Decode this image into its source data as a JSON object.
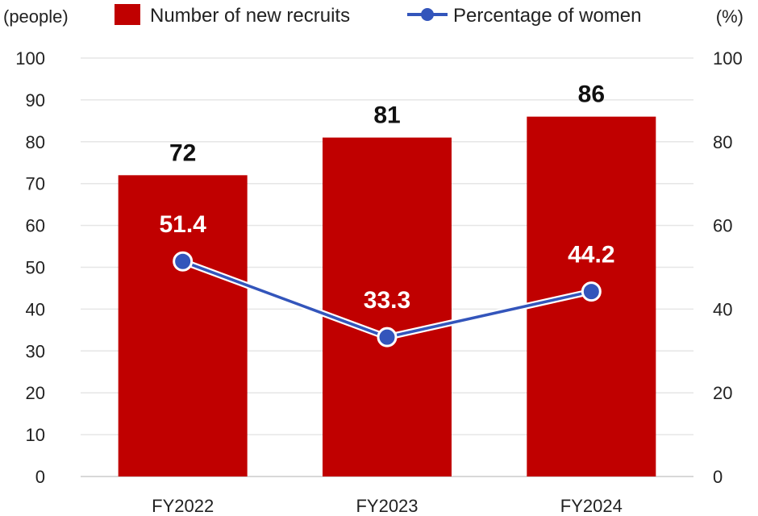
{
  "chart_data": {
    "type": "bar",
    "categories": [
      "FY2022",
      "FY2023",
      "FY2024"
    ],
    "series": [
      {
        "name": "Number of new recruits",
        "type": "bar",
        "axis": "left",
        "values": [
          72,
          81,
          86
        ],
        "labels": [
          "72",
          "81",
          "86"
        ]
      },
      {
        "name": "Percentage of women",
        "type": "line",
        "axis": "right",
        "values": [
          51.4,
          33.3,
          44.2
        ],
        "labels": [
          "51.4",
          "33.3",
          "44.2"
        ]
      }
    ],
    "ylabel_left": "(people)",
    "ylabel_right": "(%)",
    "ylim_left": [
      0,
      100
    ],
    "ylim_right": [
      0,
      100
    ],
    "yticks_left": [
      "0",
      "10",
      "20",
      "30",
      "40",
      "50",
      "60",
      "70",
      "80",
      "90",
      "100"
    ],
    "yticks_right": [
      "0",
      "20",
      "40",
      "60",
      "80",
      "100"
    ],
    "grid": true,
    "legend_position": "top-center"
  },
  "colors": {
    "bar": "#c00000",
    "line": "#3355bb",
    "grid": "#e6e6e6"
  }
}
